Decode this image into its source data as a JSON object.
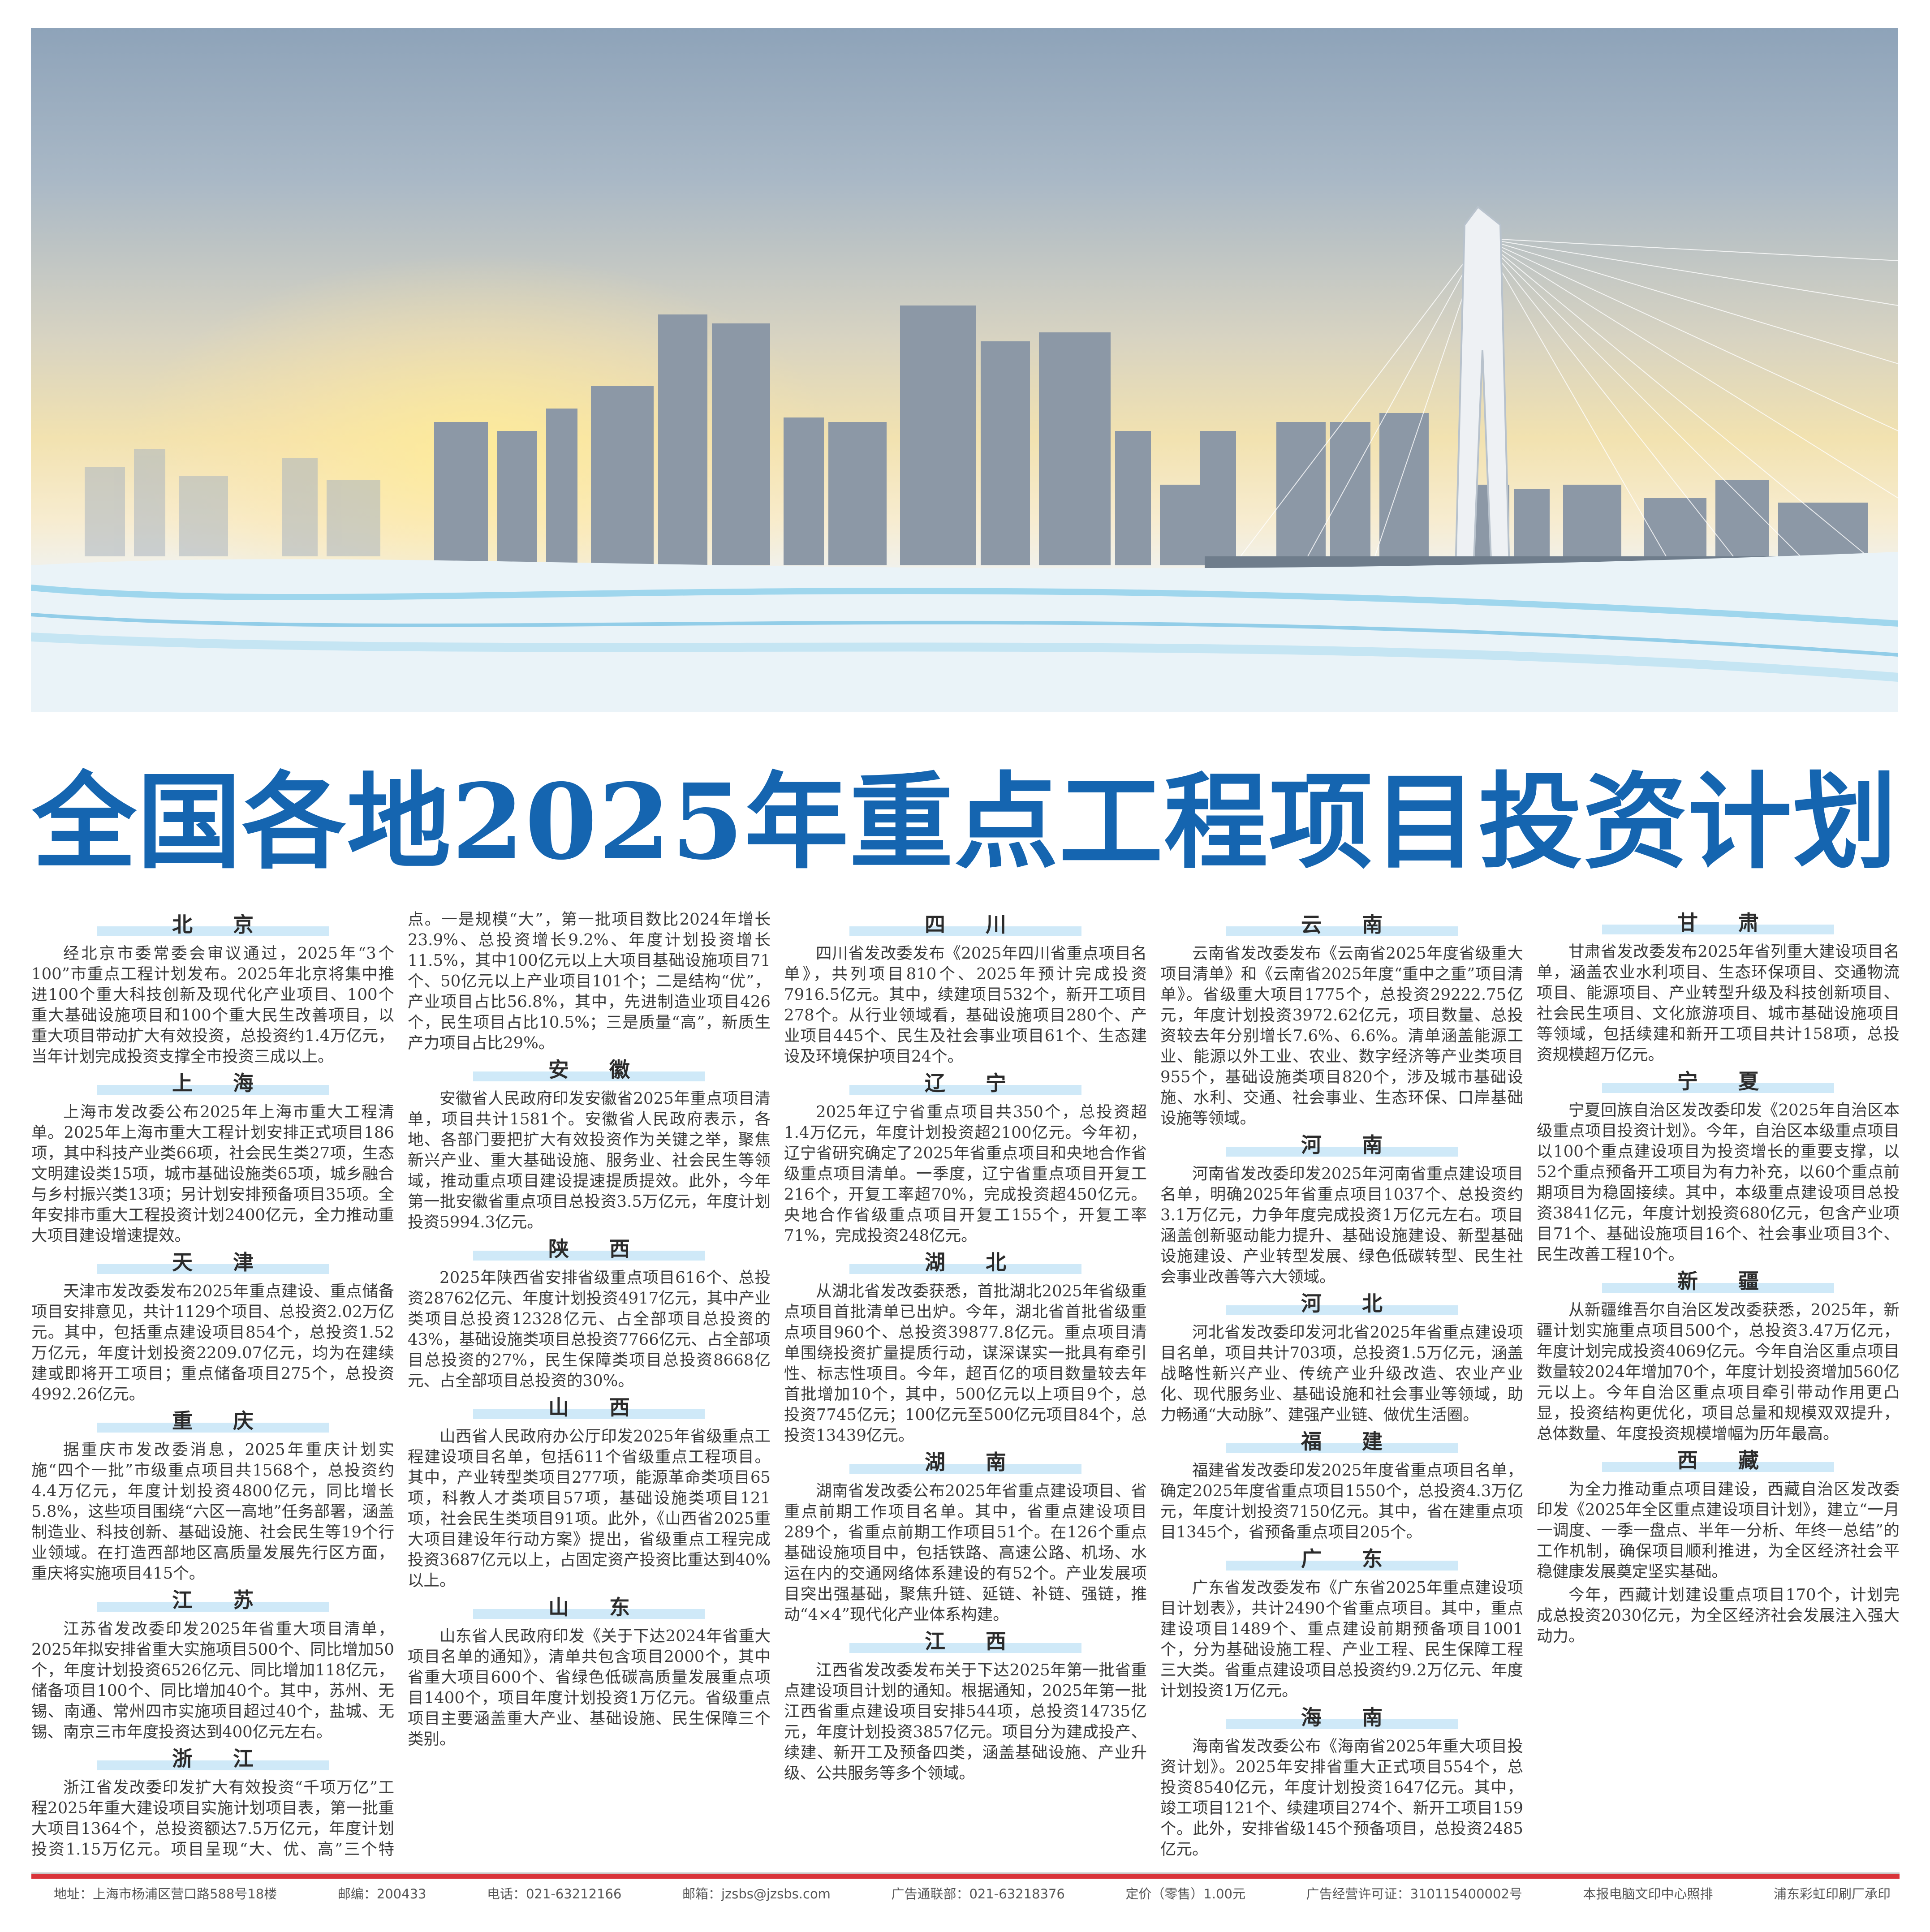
{
  "title": "全国各地2025年重点工程项目投资计划",
  "colors": {
    "title": "#1565b0",
    "heading_bar": "#cfe9f8",
    "footer_rule": "#d9343a"
  },
  "banner": {
    "icon": "city-skyline-with-cable-stayed-bridge-photo"
  },
  "sections": [
    {
      "name": "北京",
      "paragraphs": [
        "经北京市委常委会审议通过，2025年“3个100”市重点工程计划发布。2025年北京将集中推进100个重大科技创新及现代化产业项目、100个重大基础设施项目和100个重大民生改善项目，以重大项目带动扩大有效投资，总投资约1.4万亿元，当年计划完成投资支撑全市投资三成以上。"
      ]
    },
    {
      "name": "上海",
      "paragraphs": [
        "上海市发改委公布2025年上海市重大工程清单。2025年上海市重大工程计划安排正式项目186项，其中科技产业类66项，社会民生类27项，生态文明建设类15项，城市基础设施类65项，城乡融合与乡村振兴类13项；另计划安排预备项目35项。全年安排市重大工程投资计划2400亿元，全力推动重大项目建设增速提效。"
      ]
    },
    {
      "name": "天津",
      "paragraphs": [
        "天津市发改委发布2025年重点建设、重点储备项目安排意见，共计1129个项目、总投资2.02万亿元。其中，包括重点建设项目854个，总投资1.52万亿元，年度计划投资2209.07亿元，均为在建续建或即将开工项目；重点储备项目275个，总投资4992.26亿元。"
      ]
    },
    {
      "name": "重庆",
      "paragraphs": [
        "据重庆市发改委消息，2025年重庆计划实施“四个一批”市级重点项目共1568个，总投资约4.4万亿元，年度计划投资4800亿元，同比增长5.8%，这些项目围绕“六区一高地”任务部署，涵盖制造业、科技创新、基础设施、社会民生等19个行业领域。在打造西部地区高质量发展先行区方面，重庆将实施项目415个。"
      ]
    },
    {
      "name": "江苏",
      "paragraphs": [
        "江苏省发改委印发2025年省重大项目清单，2025年拟安排省重大实施项目500个、同比增加50个，年度计划投资6526亿元、同比增加118亿元，储备项目100个、同比增加40个。其中，苏州、无锡、南通、常州四市实施项目超过40个，盐城、无锡、南京三市年度投资达到400亿元左右。"
      ]
    },
    {
      "name": "浙江",
      "paragraphs": [
        "浙江省发改委印发扩大有效投资“千项万亿”工程2025年重大建设项目实施计划项目表，第一批重大项目1364个，总投资额达7.5万亿元，年度计划投资1.15万亿元。项目呈现“大、优、高”三个特点。一是规模“大”，第一批项目数比2024年增长23.9%、总投资增长9.2%、年度计划投资增长11.5%，其中100亿元以上大项目基础设施项目71个、50亿元以上产业项目101个；二是结构“优”，产业项目占比56.8%，其中，先进制造业项目426个，民生项目占比10.5%；三是质量“高”，新质生产力项目占比29%。"
      ]
    },
    {
      "name": "安徽",
      "paragraphs": [
        "安徽省人民政府印发安徽省2025年重点项目清单，项目共计1581个。安徽省人民政府表示，各地、各部门要把扩大有效投资作为关键之举，聚焦新兴产业、重大基础设施、服务业、社会民生等领域，推动重点项目建设提速提质提效。此外，今年第一批安徽省重点项目总投资3.5万亿元，年度计划投资5994.3亿元。"
      ]
    },
    {
      "name": "陕西",
      "paragraphs": [
        "2025年陕西省安排省级重点项目616个、总投资28762亿元、年度计划投资4917亿元，其中产业类项目总投资12328亿元、占全部项目总投资的43%，基础设施类项目总投资7766亿元、占全部项目总投资的27%，民生保障类项目总投资8668亿元、占全部项目总投资的30%。"
      ]
    },
    {
      "name": "山西",
      "paragraphs": [
        "山西省人民政府办公厅印发2025年省级重点工程建设项目名单，包括611个省级重点工程项目。其中，产业转型类项目277项，能源革命类项目65项，科教人才类项目57项，基础设施类项目121项，社会民生类项目91项。此外，《山西省2025重大项目建设年行动方案》提出，省级重点工程完成投资3687亿元以上，占固定资产投资比重达到40%以上。"
      ]
    },
    {
      "name": "山东",
      "paragraphs": [
        "山东省人民政府印发《关于下达2024年省重大项目名单的通知》，清单共包含项目2000个，其中省重大项目600个、省绿色低碳高质量发展重点项目1400个，项目年度计划投资1万亿元。省级重点项目主要涵盖重大产业、基础设施、民生保障三个类别。"
      ]
    },
    {
      "name": "四川",
      "colstart": true,
      "paragraphs": [
        "四川省发改委发布《2025年四川省重点项目名单》，共列项目810个、2025年预计完成投资7916.5亿元。其中，续建项目532个，新开工项目278个。从行业领域看，基础设施项目280个、产业项目445个、民生及社会事业项目61个、生态建设及环境保护项目24个。"
      ]
    },
    {
      "name": "辽宁",
      "paragraphs": [
        "2025年辽宁省重点项目共350个，总投资超1.4万亿元，年度计划投资超2100亿元。今年初，辽宁省研究确定了2025年省重点项目和央地合作省级重点项目清单。一季度，辽宁省重点项目开复工216个，开复工率超70%，完成投资超450亿元。央地合作省级重点项目开复工155个，开复工率71%，完成投资248亿元。"
      ]
    },
    {
      "name": "湖北",
      "paragraphs": [
        "从湖北省发改委获悉，首批湖北2025年省级重点项目首批清单已出炉。今年，湖北省首批省级重点项目960个、总投资39877.8亿元。重点项目清单围绕投资扩量提质行动，谋深谋实一批具有牵引性、标志性项目。今年，超百亿的项目数量较去年首批增加10个，其中，500亿元以上项目9个，总投资7745亿元；100亿元至500亿元项目84个，总投资13439亿元。"
      ]
    },
    {
      "name": "湖南",
      "paragraphs": [
        "湖南省发改委公布2025年省重点建设项目、省重点前期工作项目名单。其中，省重点建设项目289个，省重点前期工作项目51个。在126个重点基础设施项目中，包括铁路、高速公路、机场、水运在内的交通网络体系建设的有52个。产业发展项目突出强基础，聚焦升链、延链、补链、强链，推动“4×4”现代化产业体系构建。"
      ]
    },
    {
      "name": "江西",
      "paragraphs": [
        "江西省发改委发布关于下达2025年第一批省重点建设项目计划的通知。根据通知，2025年第一批江西省重点建设项目安排544项，总投资14735亿元，年度计划投资3857亿元。项目分为建成投产、续建、新开工及预备四类，涵盖基础设施、产业升级、公共服务等多个领域。"
      ]
    },
    {
      "name": "云南",
      "colstart": true,
      "paragraphs": [
        "云南省发改委发布《云南省2025年度省级重大项目清单》和《云南省2025年度“重中之重”项目清单》。省级重大项目1775个，总投资29222.75亿元，年度计划投资3972.62亿元，项目数量、总投资较去年分别增长7.6%、6.6%。清单涵盖能源工业、能源以外工业、农业、数字经济等产业类项目955个，基础设施类项目820个，涉及城市基础设施、水利、交通、社会事业、生态环保、口岸基础设施等领域。"
      ]
    },
    {
      "name": "河南",
      "paragraphs": [
        "河南省发改委印发2025年河南省重点建设项目名单，明确2025年省重点项目1037个、总投资约3.1万亿元，力争年度完成投资1万亿元左右。项目涵盖创新驱动能力提升、基础设施建设、新型基础设施建设、产业转型发展、绿色低碳转型、民生社会事业改善等六大领域。"
      ]
    },
    {
      "name": "河北",
      "paragraphs": [
        "河北省发改委印发河北省2025年省重点建设项目名单，项目共计703项，总投资1.5万亿元，涵盖战略性新兴产业、传统产业升级改造、农业产业化、现代服务业、基础设施和社会事业等领域，助力畅通“大动脉”、建强产业链、做优生活圈。"
      ]
    },
    {
      "name": "福建",
      "paragraphs": [
        "福建省发改委印发2025年度省重点项目名单，确定2025年度省重点项目1550个，总投资4.3万亿元，年度计划投资7150亿元。其中，省在建重点项目1345个，省预备重点项目205个。"
      ]
    },
    {
      "name": "广东",
      "paragraphs": [
        "广东省发改委发布《广东省2025年重点建设项目计划表》，共计2490个省重点项目。其中，重点建设项目1489个、重点建设前期预备项目1001个，分为基础设施工程、产业工程、民生保障工程三大类。省重点建设项目总投资约9.2万亿元、年度计划投资1万亿元。"
      ]
    },
    {
      "name": "海南",
      "paragraphs": [
        "海南省发改委公布《海南省2025年重大项目投资计划》。2025年安排省重大正式项目554个，总投资8540亿元，年度计划投资1647亿元。其中，竣工项目121个、续建项目274个、新开工项目159个。此外，安排省级145个预备项目，总投资2485亿元。"
      ]
    },
    {
      "name": "甘肃",
      "paragraphs": [
        "甘肃省发改委发布2025年省列重大建设项目名单，涵盖农业水利项目、生态环保项目、交通物流项目、能源项目、产业转型升级及科技创新项目、社会民生项目、文化旅游项目、城市基础设施项目等领域，包括续建和新开工项目共计158项，总投资规模超万亿元。"
      ]
    },
    {
      "name": "宁夏",
      "paragraphs": [
        "宁夏回族自治区发改委印发《2025年自治区本级重点项目投资计划》。今年，自治区本级重点项目以100个重点建设项目为投资增长的重要支撑，以52个重点预备开工项目为有力补充，以60个重点前期项目为稳固接续。其中，本级重点建设项目总投资3841亿元，年度计划投资680亿元，包含产业项目71个、基础设施项目16个、社会事业项目3个、民生改善工程10个。"
      ]
    },
    {
      "name": "新疆",
      "paragraphs": [
        "从新疆维吾尔自治区发改委获悉，2025年，新疆计划实施重点项目500个，总投资3.47万亿元，年度计划完成投资4069亿元。今年自治区重点项目数量较2024年增加70个，年度计划投资增加560亿元以上。今年自治区重点项目牵引带动作用更凸显，投资结构更优化，项目总量和规模双双提升，总体数量、年度投资规模增幅为历年最高。"
      ]
    },
    {
      "name": "西藏",
      "paragraphs": [
        "为全力推动重点项目建设，西藏自治区发改委印发《2025年全区重点建设项目计划》，建立“一月一调度、一季一盘点、半年一分析、年终一总结”的工作机制，确保项目顺利推进，为全区经济社会平稳健康发展奠定坚实基础。",
        "今年，西藏计划建设重点项目170个，计划完成总投资2030亿元，为全区经济社会发展注入强大动力。"
      ]
    }
  ],
  "footer": [
    "地址：上海市杨浦区营口路588号18楼",
    "邮编：200433",
    "电话：021-63212166",
    "邮箱：jzsbs@jzsbs.com",
    "广告通联部：021-63218376",
    "定价（零售）1.00元",
    "广告经营许可证：310115400002号",
    "本报电脑文印中心照排",
    "浦东彩虹印刷厂承印"
  ]
}
